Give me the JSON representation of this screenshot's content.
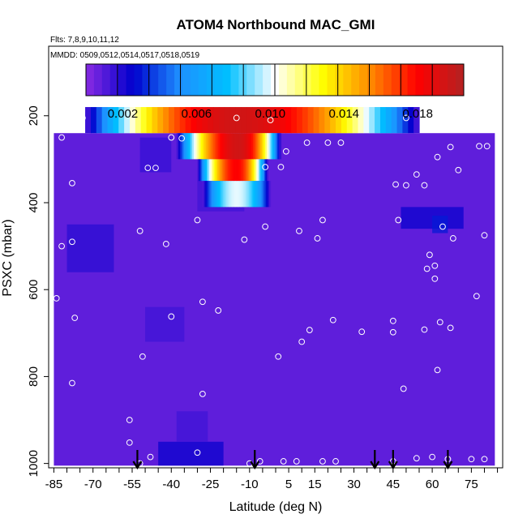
{
  "chart_data": {
    "type": "heatmap",
    "title": "ATOM4 Northbound MAC_GMI",
    "flights_note": "Flts: 7,8,9,10,11,12",
    "mmdd_note": "MMDD: 0509,0512,0514,0517,0518,0519",
    "xlabel": "Latitude (deg N)",
    "ylabel": "PSXC (mbar)",
    "xlim": [
      -87,
      87
    ],
    "ylim": [
      1010,
      40
    ],
    "y_inverted": true,
    "x_ticks": [
      -85,
      -80,
      -75,
      -70,
      -65,
      -60,
      -55,
      -50,
      -45,
      -40,
      -35,
      -30,
      -25,
      -20,
      -15,
      -10,
      -5,
      0,
      5,
      10,
      15,
      20,
      25,
      30,
      35,
      40,
      45,
      50,
      55,
      60,
      65,
      70,
      75,
      80,
      85
    ],
    "x_tick_labels": [
      "-85",
      "-70",
      "-55",
      "-40",
      "-25",
      "-10",
      "5",
      "15",
      "30",
      "45",
      "60",
      "75"
    ],
    "y_tick_labels": [
      "200",
      "400",
      "600",
      "800",
      "1000"
    ],
    "y_ticks": [
      200,
      400,
      600,
      800,
      1000
    ],
    "colorbar": {
      "min": 0.0,
      "max": 0.0205,
      "tick_labels": [
        "0.002",
        "0.006",
        "0.010",
        "0.014",
        "0.018"
      ],
      "tick_values": [
        0.002,
        0.006,
        0.01,
        0.014,
        0.018
      ],
      "colors": [
        "#8a2be2",
        "#0000cd",
        "#1e90ff",
        "#00bfff",
        "#ffffff",
        "#ffff00",
        "#ff8c00",
        "#ff0000",
        "#b22222"
      ]
    },
    "background_value": 0.0008,
    "field_extent": {
      "x": [
        -85,
        84
      ],
      "p_top": 180,
      "p_bottom": 1005
    },
    "high_values": [
      {
        "band": "180-240 mbar",
        "x_range": [
          -73,
          55
        ],
        "peak_lat": -15,
        "peak_value": 0.0195
      },
      {
        "band": "240-300 mbar",
        "x_range": [
          -38,
          2
        ],
        "peak_lat": -14,
        "peak_value": 0.0195
      },
      {
        "band": "300-350 mbar",
        "x_range": [
          -30,
          -3
        ],
        "peak_lat": -15,
        "peak_value": 0.018
      },
      {
        "band": "350-410 mbar",
        "x_range": [
          -28,
          -2
        ],
        "peak_lat": -15,
        "peak_value": 0.01
      }
    ],
    "sample_points": [
      [
        -84,
        212
      ],
      [
        -74,
        205
      ],
      [
        -40,
        250
      ],
      [
        -36,
        252
      ],
      [
        -15,
        205
      ],
      [
        -2,
        210
      ],
      [
        50,
        205
      ],
      [
        60,
        205
      ],
      [
        65,
        220
      ],
      [
        70,
        215
      ],
      [
        80,
        210
      ],
      [
        -82,
        250
      ],
      [
        -49,
        320
      ],
      [
        -46,
        320
      ],
      [
        -78,
        355
      ],
      [
        -4,
        318
      ],
      [
        2,
        318
      ],
      [
        4,
        282
      ],
      [
        12,
        262
      ],
      [
        20,
        262
      ],
      [
        25,
        262
      ],
      [
        46,
        358
      ],
      [
        50,
        360
      ],
      [
        54,
        335
      ],
      [
        57,
        360
      ],
      [
        62,
        295
      ],
      [
        67,
        272
      ],
      [
        70,
        325
      ],
      [
        78,
        270
      ],
      [
        81,
        270
      ],
      [
        -30,
        440
      ],
      [
        -42,
        495
      ],
      [
        -52,
        465
      ],
      [
        -12,
        485
      ],
      [
        -4,
        455
      ],
      [
        9,
        465
      ],
      [
        18,
        440
      ],
      [
        16,
        482
      ],
      [
        47,
        440
      ],
      [
        59,
        520
      ],
      [
        61,
        545
      ],
      [
        58,
        552
      ],
      [
        68,
        482
      ],
      [
        80,
        475
      ],
      [
        64,
        455
      ],
      [
        -84,
        620
      ],
      [
        -77,
        665
      ],
      [
        -28,
        628
      ],
      [
        -22,
        648
      ],
      [
        -40,
        662
      ],
      [
        -82,
        500
      ],
      [
        -78,
        490
      ],
      [
        10,
        720
      ],
      [
        13,
        693
      ],
      [
        22,
        670
      ],
      [
        33,
        697
      ],
      [
        45,
        672
      ],
      [
        45,
        698
      ],
      [
        63,
        675
      ],
      [
        67,
        688
      ],
      [
        57,
        692
      ],
      [
        61,
        575
      ],
      [
        77,
        615
      ],
      [
        62,
        785
      ],
      [
        1,
        754
      ],
      [
        -51,
        754
      ],
      [
        -78,
        815
      ],
      [
        -28,
        840
      ],
      [
        49,
        828
      ],
      [
        -56,
        900
      ],
      [
        -56,
        952
      ],
      [
        -48,
        985
      ],
      [
        -30,
        975
      ],
      [
        -52,
        1000
      ],
      [
        -10,
        1000
      ],
      [
        -6,
        995
      ],
      [
        3,
        995
      ],
      [
        8,
        995
      ],
      [
        18,
        995
      ],
      [
        23,
        995
      ],
      [
        45,
        995
      ],
      [
        54,
        988
      ],
      [
        66,
        990
      ],
      [
        75,
        990
      ],
      [
        80,
        990
      ],
      [
        60,
        985
      ]
    ],
    "arrows_lat": [
      -53,
      -8,
      38,
      45,
      66
    ]
  }
}
